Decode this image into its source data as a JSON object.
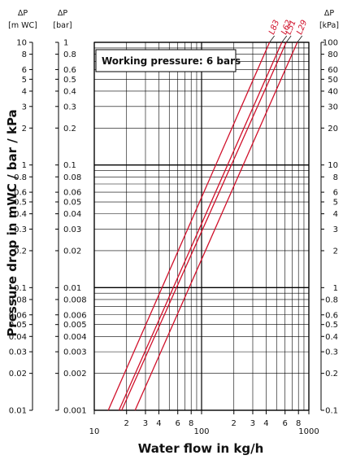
{
  "chart_data": {
    "type": "line",
    "x_scale": "log",
    "y_scale": "log",
    "xlim": [
      10,
      1000
    ],
    "ylim_mwc": [
      0.01,
      10
    ],
    "x_ticks": [
      "10",
      "2",
      "3",
      "4",
      "6",
      "8",
      "100",
      "2",
      "3",
      "4",
      "6",
      "8",
      "1000"
    ],
    "y_ticks_mwc": [
      "10",
      "8",
      "6",
      "5",
      "4",
      "3",
      "2",
      "1",
      "0.8",
      "0.6",
      "0.5",
      "0.4",
      "0.3",
      "0.2",
      "0.1",
      "0.08",
      "0.06",
      "0.05",
      "0.04",
      "0.03",
      "0.02",
      "0.01"
    ],
    "y_ticks_bar": [
      "1",
      "0.8",
      "0.6",
      "0.5",
      "0.4",
      "0.3",
      "0.2",
      "0.1",
      "0.08",
      "0.06",
      "0.05",
      "0.04",
      "0.03",
      "0.02",
      "0.01",
      "0.008",
      "0.006",
      "0.005",
      "0.004",
      "0.003",
      "0.002",
      "0.001"
    ],
    "y_ticks_kpa": [
      "100",
      "80",
      "60",
      "50",
      "40",
      "30",
      "20",
      "10",
      "8",
      "6",
      "5",
      "4",
      "3",
      "2",
      "1",
      "0.8",
      "0.6",
      "0.5",
      "0.4",
      "0.3",
      "0.2",
      "0.1"
    ],
    "headers": {
      "mwc_symbol": "ΔP",
      "mwc_unit": "[m WC]",
      "bar_symbol": "ΔP",
      "bar_unit": "[bar]",
      "kpa_symbol": "ΔP",
      "kpa_unit": "[kPa]"
    },
    "ylabel": "Pressure drop in mWC / bar / kPa",
    "xlabel": "Water flow in kg/h",
    "annotation": "Working pressure: 6 bars",
    "grid": true,
    "series": [
      {
        "name": "L83",
        "color": "#d0102a",
        "x": [
          13.5,
          430
        ],
        "y": [
          0.01,
          10
        ]
      },
      {
        "name": "L62",
        "color": "#d0102a",
        "x": [
          17,
          560
        ],
        "y": [
          0.01,
          10
        ]
      },
      {
        "name": "L51",
        "color": "#d0102a",
        "x": [
          18,
          615
        ],
        "y": [
          0.01,
          10
        ]
      },
      {
        "name": "L29",
        "color": "#d0102a",
        "x": [
          24,
          780
        ],
        "y": [
          0.01,
          10
        ]
      }
    ]
  }
}
